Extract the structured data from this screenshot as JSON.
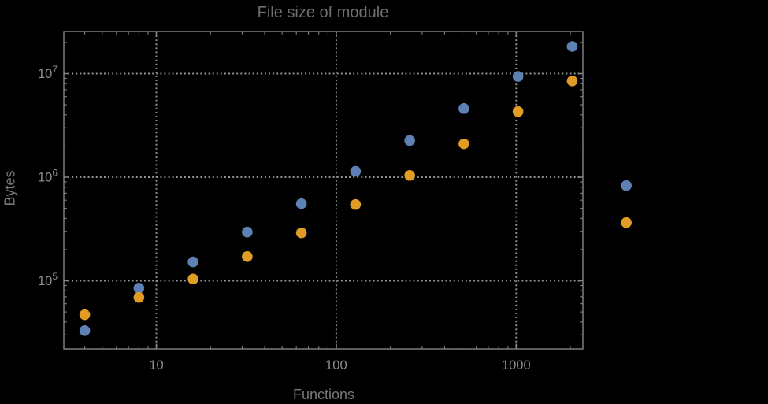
{
  "figure": {
    "title": "File size of module"
  },
  "chart_data": {
    "type": "scatter",
    "title": "File size of module",
    "xlabel": "Functions",
    "ylabel": "Bytes",
    "x_scale": "log",
    "y_scale": "log",
    "x": [
      4,
      8,
      16,
      32,
      64,
      128,
      256,
      512,
      1024,
      2048,
      4096
    ],
    "series": [
      {
        "name": "blue",
        "color": "#5E81B5",
        "values": [
          33000,
          85000,
          152000,
          295000,
          555000,
          1140000,
          2260000,
          4600000,
          9400000,
          18300000,
          830000
        ]
      },
      {
        "name": "orange",
        "color": "#E09C24",
        "values": [
          47000,
          69000,
          104000,
          171000,
          290000,
          545000,
          1040000,
          2100000,
          4300000,
          8500000,
          364000
        ]
      }
    ],
    "axes": {
      "x_tick_values": [
        10,
        100,
        1000
      ],
      "x_tick_labels": [
        "10",
        "100",
        "1000"
      ],
      "y_tick_values": [
        100000,
        1000000,
        10000000
      ],
      "y_tick_labels": [
        {
          "base": "10",
          "exp": "5"
        },
        {
          "base": "10",
          "exp": "6"
        },
        {
          "base": "10",
          "exp": "7"
        }
      ],
      "x_range": [
        3.1,
        2360
      ],
      "y_range": [
        21000,
        26000000
      ],
      "grid": "dotted",
      "note": "points at x=4096 are drawn outside the right frame edge (no clipping)"
    },
    "legend": null
  },
  "colors": {
    "background": "#000000",
    "series_blue": "#5E81B5",
    "series_orange": "#E09C24",
    "frame": "#868686",
    "gridline": "#969696",
    "title_text": "#6e6e6e",
    "axis_label_text": "#787878",
    "tick_label_text": "#8e8e8e"
  }
}
